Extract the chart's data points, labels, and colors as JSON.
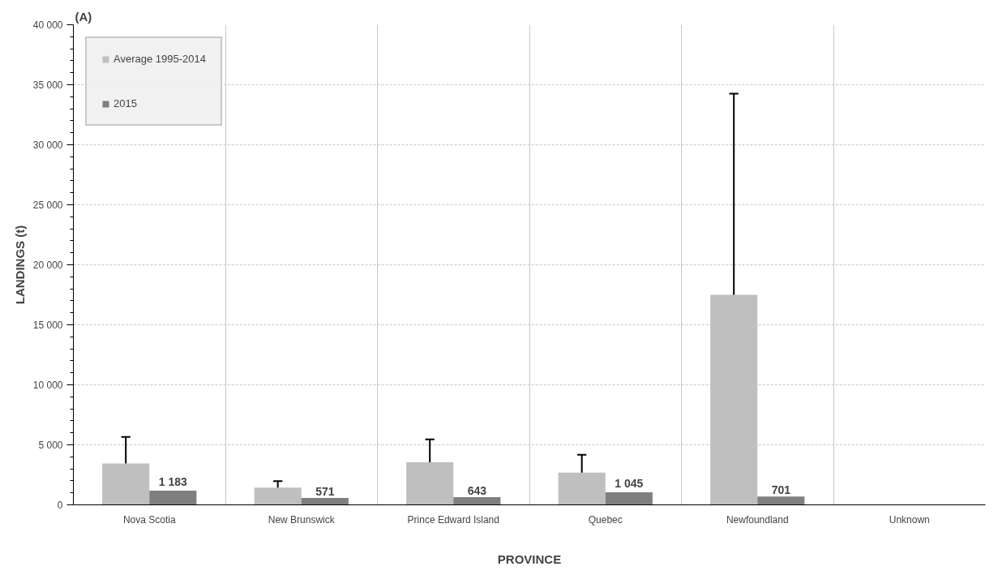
{
  "chart_data": {
    "type": "bar",
    "xlabel": "PROVINCE",
    "ylabel": "LANDINGS (t)",
    "annotations": [
      "(A)"
    ],
    "categories": [
      "Nova Scotia",
      "New Brunswick",
      "Prince Edward Island",
      "Quebec",
      "Newfoundland",
      "Unknown"
    ],
    "series": [
      {
        "name": "Average 1995-2014",
        "color": "#bfbfbf",
        "values": [
          3450,
          1440,
          3540,
          2690,
          17500,
          null
        ],
        "errors": [
          [
            3450,
            5660
          ],
          [
            1440,
            1980
          ],
          [
            3540,
            5450
          ],
          [
            2690,
            4180
          ],
          [
            17500,
            34260
          ],
          null
        ]
      },
      {
        "name": "2015",
        "color": "#7f7f7f",
        "values": [
          1183,
          571,
          643,
          1045,
          701,
          null
        ],
        "value_labels": [
          "1 183",
          "571",
          "643",
          "1 045",
          "701",
          null
        ]
      }
    ],
    "ylim": [
      0,
      40000
    ],
    "yticks": [
      {
        "value": 0,
        "label": "0"
      },
      {
        "value": 5000,
        "label": "5 000"
      },
      {
        "value": 10000,
        "label": "10 000"
      },
      {
        "value": 15000,
        "label": "15 000"
      },
      {
        "value": 20000,
        "label": "20 000"
      },
      {
        "value": 25000,
        "label": "25 000"
      },
      {
        "value": 30000,
        "label": "30 000"
      },
      {
        "value": 35000,
        "label": "35 000"
      },
      {
        "value": 40000,
        "label": "40 000"
      }
    ],
    "grid": true,
    "legend": "top left"
  }
}
